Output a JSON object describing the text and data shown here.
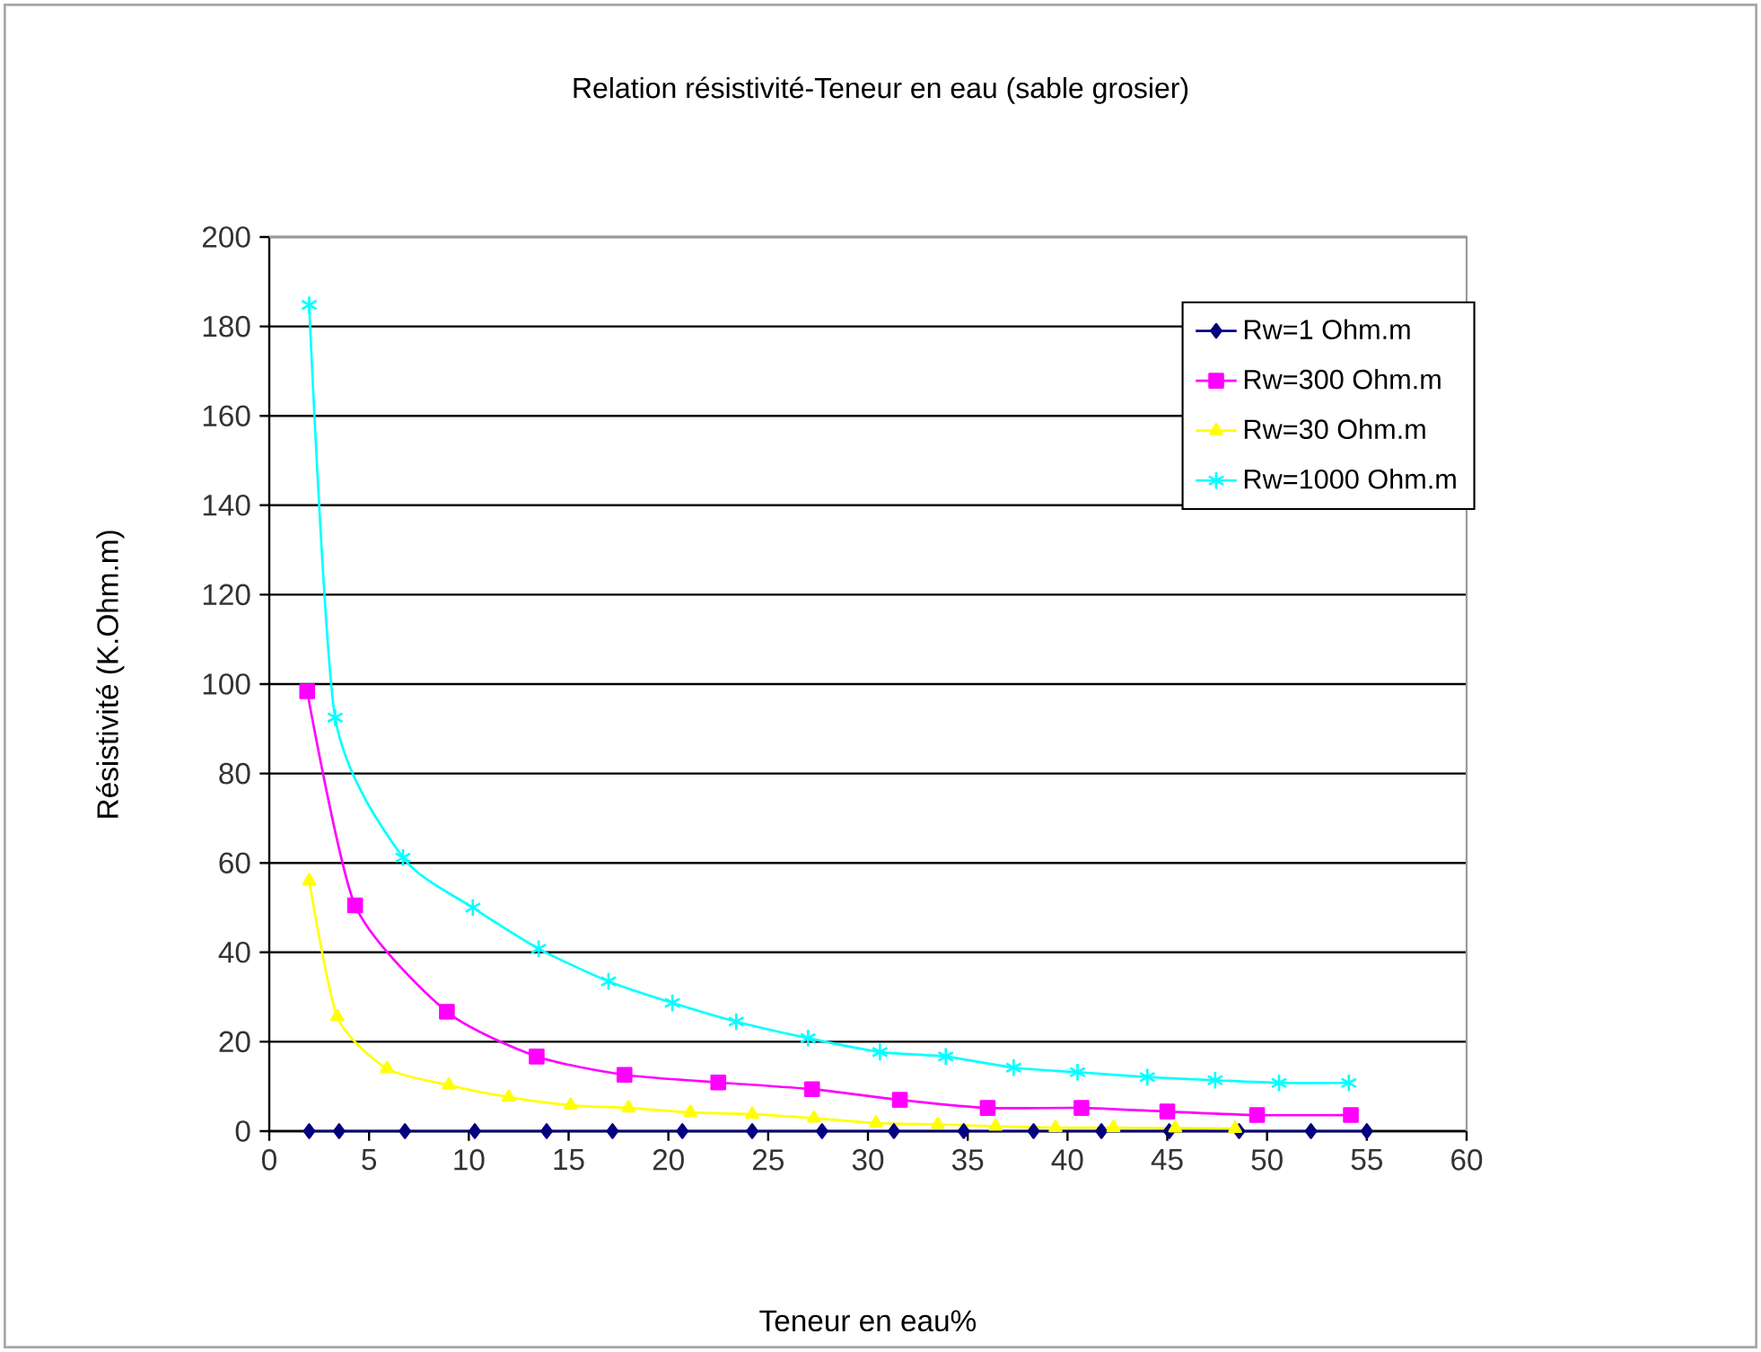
{
  "chart_data": {
    "type": "line",
    "title": "Relation résistivité-Teneur en eau (sable grosier)",
    "xlabel": "Teneur en eau%",
    "ylabel": "Résistivité (K.Ohm.m)",
    "xlim": [
      0,
      60
    ],
    "xticks": [
      0,
      5,
      10,
      15,
      20,
      25,
      30,
      35,
      40,
      45,
      50,
      55,
      60
    ],
    "ylim": [
      0,
      200
    ],
    "yticks": [
      0,
      20,
      40,
      60,
      80,
      100,
      120,
      140,
      160,
      180,
      200
    ],
    "grid": "y",
    "legend": "top right",
    "series": [
      {
        "name": "Rw=1 Ohm.m",
        "color": "#000080",
        "marker": "diamond",
        "x": [
          2.0,
          3.5,
          6.8,
          10.3,
          13.9,
          17.2,
          20.7,
          24.2,
          27.7,
          31.3,
          34.8,
          38.3,
          41.7,
          45.1,
          48.6,
          52.2,
          55.0
        ],
        "values": [
          0,
          0,
          0,
          0,
          0,
          0,
          0,
          0,
          0,
          0,
          0,
          0,
          0,
          0,
          0,
          0,
          0
        ]
      },
      {
        "name": "Rw=300 Ohm.m",
        "color": "#ff00ff",
        "marker": "square",
        "x": [
          1.9,
          4.3,
          8.9,
          13.4,
          17.8,
          22.5,
          27.2,
          31.6,
          36.0,
          40.7,
          45.0,
          49.5,
          54.2
        ],
        "values": [
          98.4,
          50.5,
          26.7,
          16.7,
          12.6,
          10.9,
          9.4,
          7.0,
          5.2,
          5.2,
          4.4,
          3.6,
          3.6
        ]
      },
      {
        "name": "Rw=30 Ohm.m",
        "color": "#ffff00",
        "marker": "triangle",
        "x": [
          2.0,
          3.4,
          5.9,
          9.0,
          12.0,
          15.1,
          18.0,
          21.1,
          24.2,
          27.3,
          30.4,
          33.5,
          36.4,
          39.4,
          42.3,
          45.4,
          48.4
        ],
        "values": [
          56,
          25.6,
          14.0,
          10.3,
          7.6,
          5.8,
          5.2,
          4.2,
          3.8,
          2.9,
          1.8,
          1.5,
          1.1,
          0.8,
          0.8,
          0.7,
          0.6
        ]
      },
      {
        "name": "Rw=1000 Ohm.m",
        "color": "#00ffff",
        "marker": "cross",
        "x": [
          2.0,
          3.3,
          6.7,
          10.2,
          13.5,
          17.0,
          20.2,
          23.4,
          27.0,
          30.6,
          33.9,
          37.3,
          40.5,
          44.0,
          47.4,
          50.6,
          54.1
        ],
        "values": [
          184.8,
          92.5,
          61.2,
          50.0,
          40.8,
          33.5,
          28.7,
          24.5,
          20.8,
          17.7,
          16.7,
          14.2,
          13.2,
          12.1,
          11.4,
          10.8,
          10.8
        ]
      }
    ]
  }
}
